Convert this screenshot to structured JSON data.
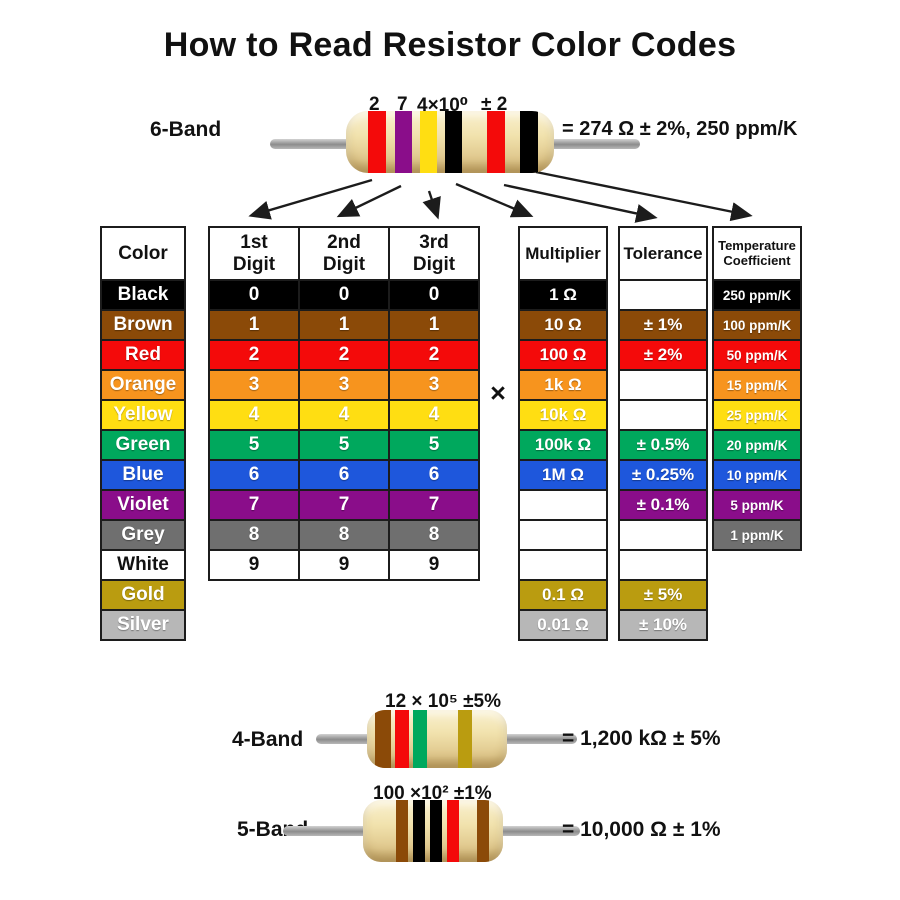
{
  "title": "How to Read Resistor Color Codes",
  "palette": {
    "black": "#000000",
    "brown": "#8B4A08",
    "red": "#F40A0A",
    "orange": "#F7941E",
    "yellow": "#FFDE12",
    "green": "#00A85D",
    "blue": "#1E57DC",
    "violet": "#8A0D8A",
    "grey": "#6F6F6F",
    "white": "#FFFFFF",
    "gold": "#BA9C10",
    "silver": "#B7B7B7",
    "resistor_body": "#F1E2AD",
    "lead": "#9A9A9A",
    "arrow": "#1c1c1c"
  },
  "resistors": {
    "six_band": {
      "label": "6-Band",
      "ann": {
        "d1": "2",
        "d2": "7",
        "mult": "4×10⁰",
        "tol": "± 2"
      },
      "result": "= 274 Ω ± 2%, 250 ppm/K",
      "bands": [
        "red",
        "violet",
        "yellow",
        "black",
        "red",
        "black"
      ]
    },
    "four_band": {
      "label": "4-Band",
      "ann": "12 × 10⁵ ±5%",
      "result": "= 1,200 kΩ ± 5%",
      "bands": [
        "brown",
        "red",
        "green",
        "gold"
      ]
    },
    "five_band": {
      "label": "5-Band",
      "ann": "100 ×10² ±1%",
      "result": "= 10,000 Ω ± 1%",
      "bands": [
        "brown",
        "black",
        "black",
        "red",
        "brown"
      ]
    }
  },
  "table": {
    "multiply_symbol": "×",
    "headers": {
      "color": "Color",
      "d1": "1st\nDigit",
      "d2": "2nd\nDigit",
      "d3": "3rd\nDigit",
      "multiplier": "Multiplier",
      "tolerance": "Tolerance",
      "tempco": "Temperature\nCoefficient"
    },
    "rows": [
      {
        "name": "Black",
        "key": "black",
        "digit": "0",
        "multiplier": "1 Ω",
        "tolerance": "",
        "tempco": "250 ppm/K",
        "text": "white"
      },
      {
        "name": "Brown",
        "key": "brown",
        "digit": "1",
        "multiplier": "10 Ω",
        "tolerance": "± 1%",
        "tempco": "100 ppm/K",
        "text": "white"
      },
      {
        "name": "Red",
        "key": "red",
        "digit": "2",
        "multiplier": "100 Ω",
        "tolerance": "± 2%",
        "tempco": "50 ppm/K",
        "text": "white"
      },
      {
        "name": "Orange",
        "key": "orange",
        "digit": "3",
        "multiplier": "1k Ω",
        "tolerance": "",
        "tempco": "15 ppm/K",
        "text": "white"
      },
      {
        "name": "Yellow",
        "key": "yellow",
        "digit": "4",
        "multiplier": "10k Ω",
        "tolerance": "",
        "tempco": "25 ppm/K",
        "text": "white"
      },
      {
        "name": "Green",
        "key": "green",
        "digit": "5",
        "multiplier": "100k Ω",
        "tolerance": "± 0.5%",
        "tempco": "20 ppm/K",
        "text": "white"
      },
      {
        "name": "Blue",
        "key": "blue",
        "digit": "6",
        "multiplier": "1M Ω",
        "tolerance": "± 0.25%",
        "tempco": "10 ppm/K",
        "text": "white"
      },
      {
        "name": "Violet",
        "key": "violet",
        "digit": "7",
        "multiplier": "",
        "tolerance": "± 0.1%",
        "tempco": "5 ppm/K",
        "text": "white"
      },
      {
        "name": "Grey",
        "key": "grey",
        "digit": "8",
        "multiplier": "",
        "tolerance": "",
        "tempco": "1 ppm/K",
        "text": "white"
      },
      {
        "name": "White",
        "key": "white",
        "digit": "9",
        "multiplier": "",
        "tolerance": "",
        "tempco": null,
        "text": "black"
      },
      {
        "name": "Gold",
        "key": "gold",
        "digit": null,
        "multiplier": "0.1 Ω",
        "tolerance": "± 5%",
        "tempco": null,
        "text": "white"
      },
      {
        "name": "Silver",
        "key": "silver",
        "digit": null,
        "multiplier": "0.01 Ω",
        "tolerance": "± 10%",
        "tempco": null,
        "text": "white"
      }
    ]
  }
}
